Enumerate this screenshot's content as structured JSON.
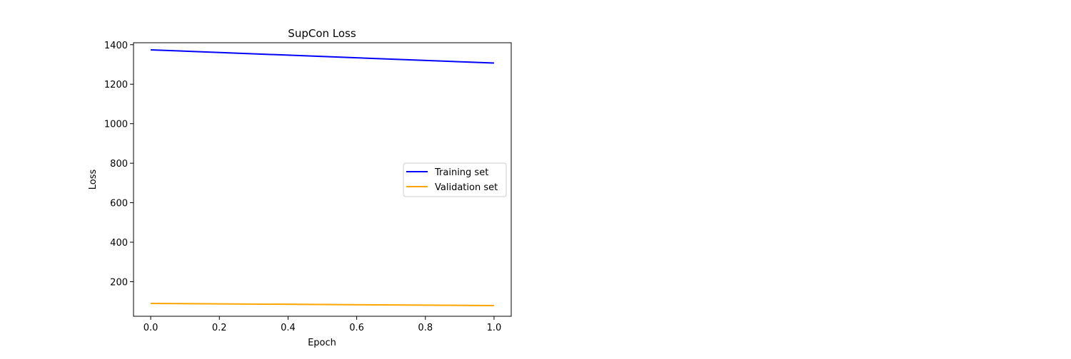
{
  "chart_data": {
    "type": "line",
    "title": "SupCon Loss",
    "xlabel": "Epoch",
    "ylabel": "Loss",
    "xlim": [
      -0.05,
      1.05
    ],
    "ylim": [
      25,
      1410
    ],
    "xticks": [
      0.0,
      0.2,
      0.4,
      0.6,
      0.8,
      1.0
    ],
    "xtick_labels": [
      "0.0",
      "0.2",
      "0.4",
      "0.6",
      "0.8",
      "1.0"
    ],
    "yticks": [
      200,
      400,
      600,
      800,
      1000,
      1200,
      1400
    ],
    "ytick_labels": [
      "200",
      "400",
      "600",
      "800",
      "1000",
      "1200",
      "1400"
    ],
    "grid": false,
    "legend_position": "center-right",
    "series": [
      {
        "name": "Training set",
        "color": "#0000ff",
        "x": [
          0,
          1
        ],
        "y": [
          1374,
          1307
        ]
      },
      {
        "name": "Validation set",
        "color": "#ffa500",
        "x": [
          0,
          1
        ],
        "y": [
          90,
          79
        ]
      }
    ]
  }
}
